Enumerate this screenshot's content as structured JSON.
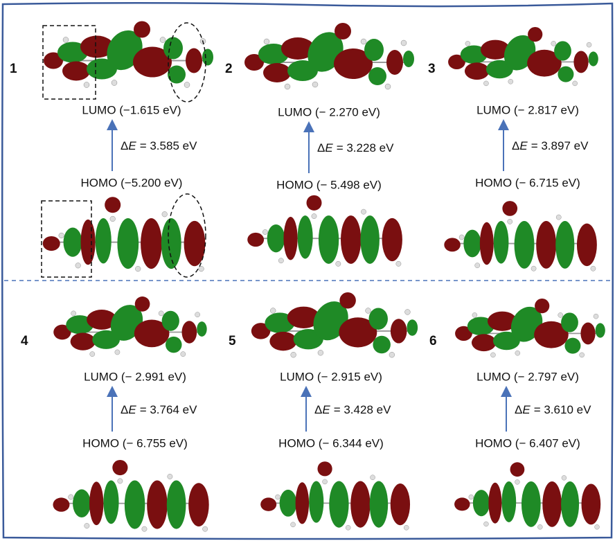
{
  "panels": [
    {
      "label": "1",
      "lumo": "LUMO (−1.615 eV)",
      "delta_e": {
        "symbol": "Δ",
        "variable": "E",
        "value": "= 3.585 eV"
      },
      "homo": "HOMO (−5.200 eV)"
    },
    {
      "label": "2",
      "lumo": "LUMO (− 2.270 eV)",
      "delta_e": {
        "symbol": "Δ",
        "variable": "E",
        "value": "= 3.228 eV"
      },
      "homo": "HOMO (− 5.498 eV)"
    },
    {
      "label": "3",
      "lumo": "LUMO (− 2.817 eV)",
      "delta_e": {
        "symbol": "Δ",
        "variable": "E",
        "value": "= 3.897 eV"
      },
      "homo": "HOMO (− 6.715 eV)"
    },
    {
      "label": "4",
      "lumo": "LUMO (− 2.991 eV)",
      "delta_e": {
        "symbol": "Δ",
        "variable": "E",
        "value": "= 3.764 eV"
      },
      "homo": "HOMO (− 6.755 eV)"
    },
    {
      "label": "5",
      "lumo": "LUMO (− 2.915 eV)",
      "delta_e": {
        "symbol": "Δ",
        "variable": "E",
        "value": "= 3.428 eV"
      },
      "homo": "HOMO (− 6.344 eV)"
    },
    {
      "label": "6",
      "lumo": "LUMO (− 2.797 eV)",
      "delta_e": {
        "symbol": "Δ",
        "variable": "E",
        "value": "= 3.610 eV"
      },
      "homo": "HOMO (− 6.407 eV)"
    }
  ]
}
